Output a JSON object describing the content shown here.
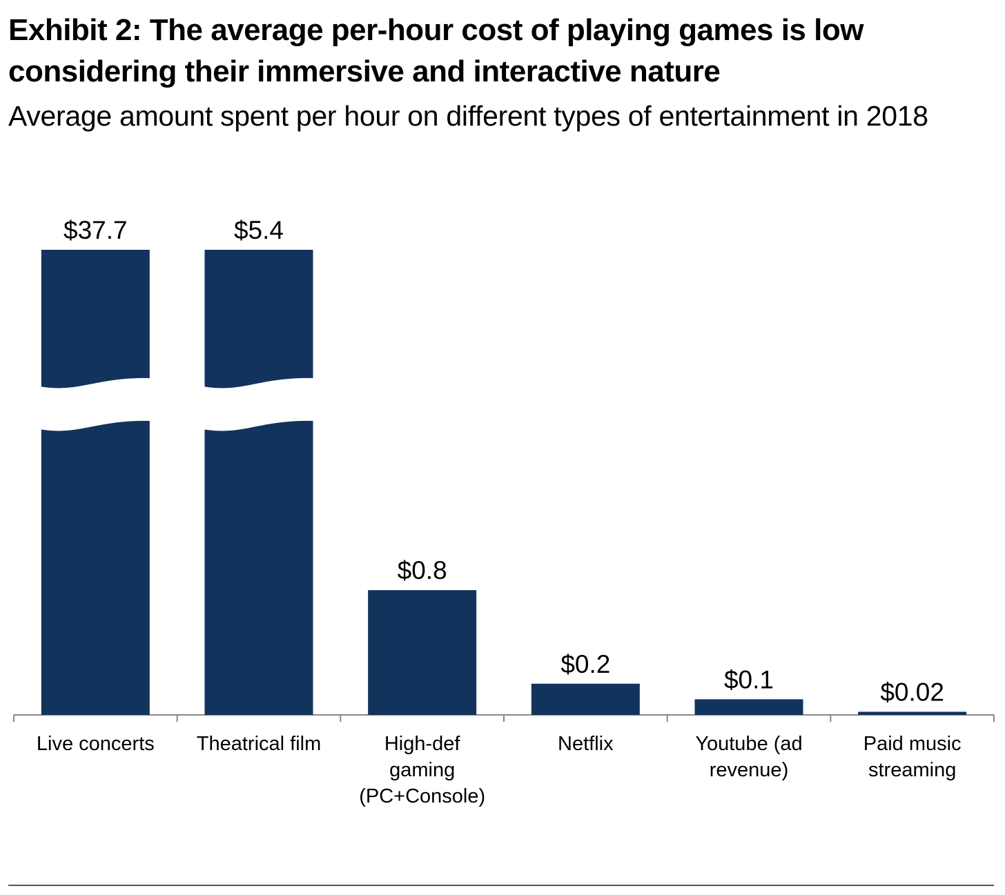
{
  "title": "Exhibit 2: The average per-hour cost of playing games is low considering their immersive and interactive nature",
  "subtitle": "Average amount spent per hour on different types of entertainment in 2018",
  "colors": {
    "bar": "#12335c",
    "axis": "#888888"
  },
  "chart_data": {
    "type": "bar",
    "title": "Exhibit 2: The average per-hour cost of playing games is low considering their immersive and interactive nature",
    "subtitle": "Average amount spent per hour on different types of entertainment in 2018",
    "categories": [
      "Live concerts",
      "Theatrical film",
      "High-def gaming (PC+Console)",
      "Netflix",
      "Youtube (ad revenue)",
      "Paid music streaming"
    ],
    "category_label_lines": [
      [
        "Live concerts"
      ],
      [
        "Theatrical film"
      ],
      [
        "High-def",
        "gaming",
        "(PC+Console)"
      ],
      [
        "Netflix"
      ],
      [
        "Youtube (ad",
        "revenue)"
      ],
      [
        "Paid music",
        "streaming"
      ]
    ],
    "values": [
      37.7,
      5.4,
      0.8,
      0.2,
      0.1,
      0.02
    ],
    "data_labels": [
      "$37.7",
      "$5.4",
      "$0.8",
      "$0.2",
      "$0.1",
      "$0.02"
    ],
    "broken_axis_bars": [
      "Live concerts",
      "Theatrical film"
    ],
    "xlabel": "",
    "ylabel": "",
    "grid": false,
    "legend": "none"
  }
}
